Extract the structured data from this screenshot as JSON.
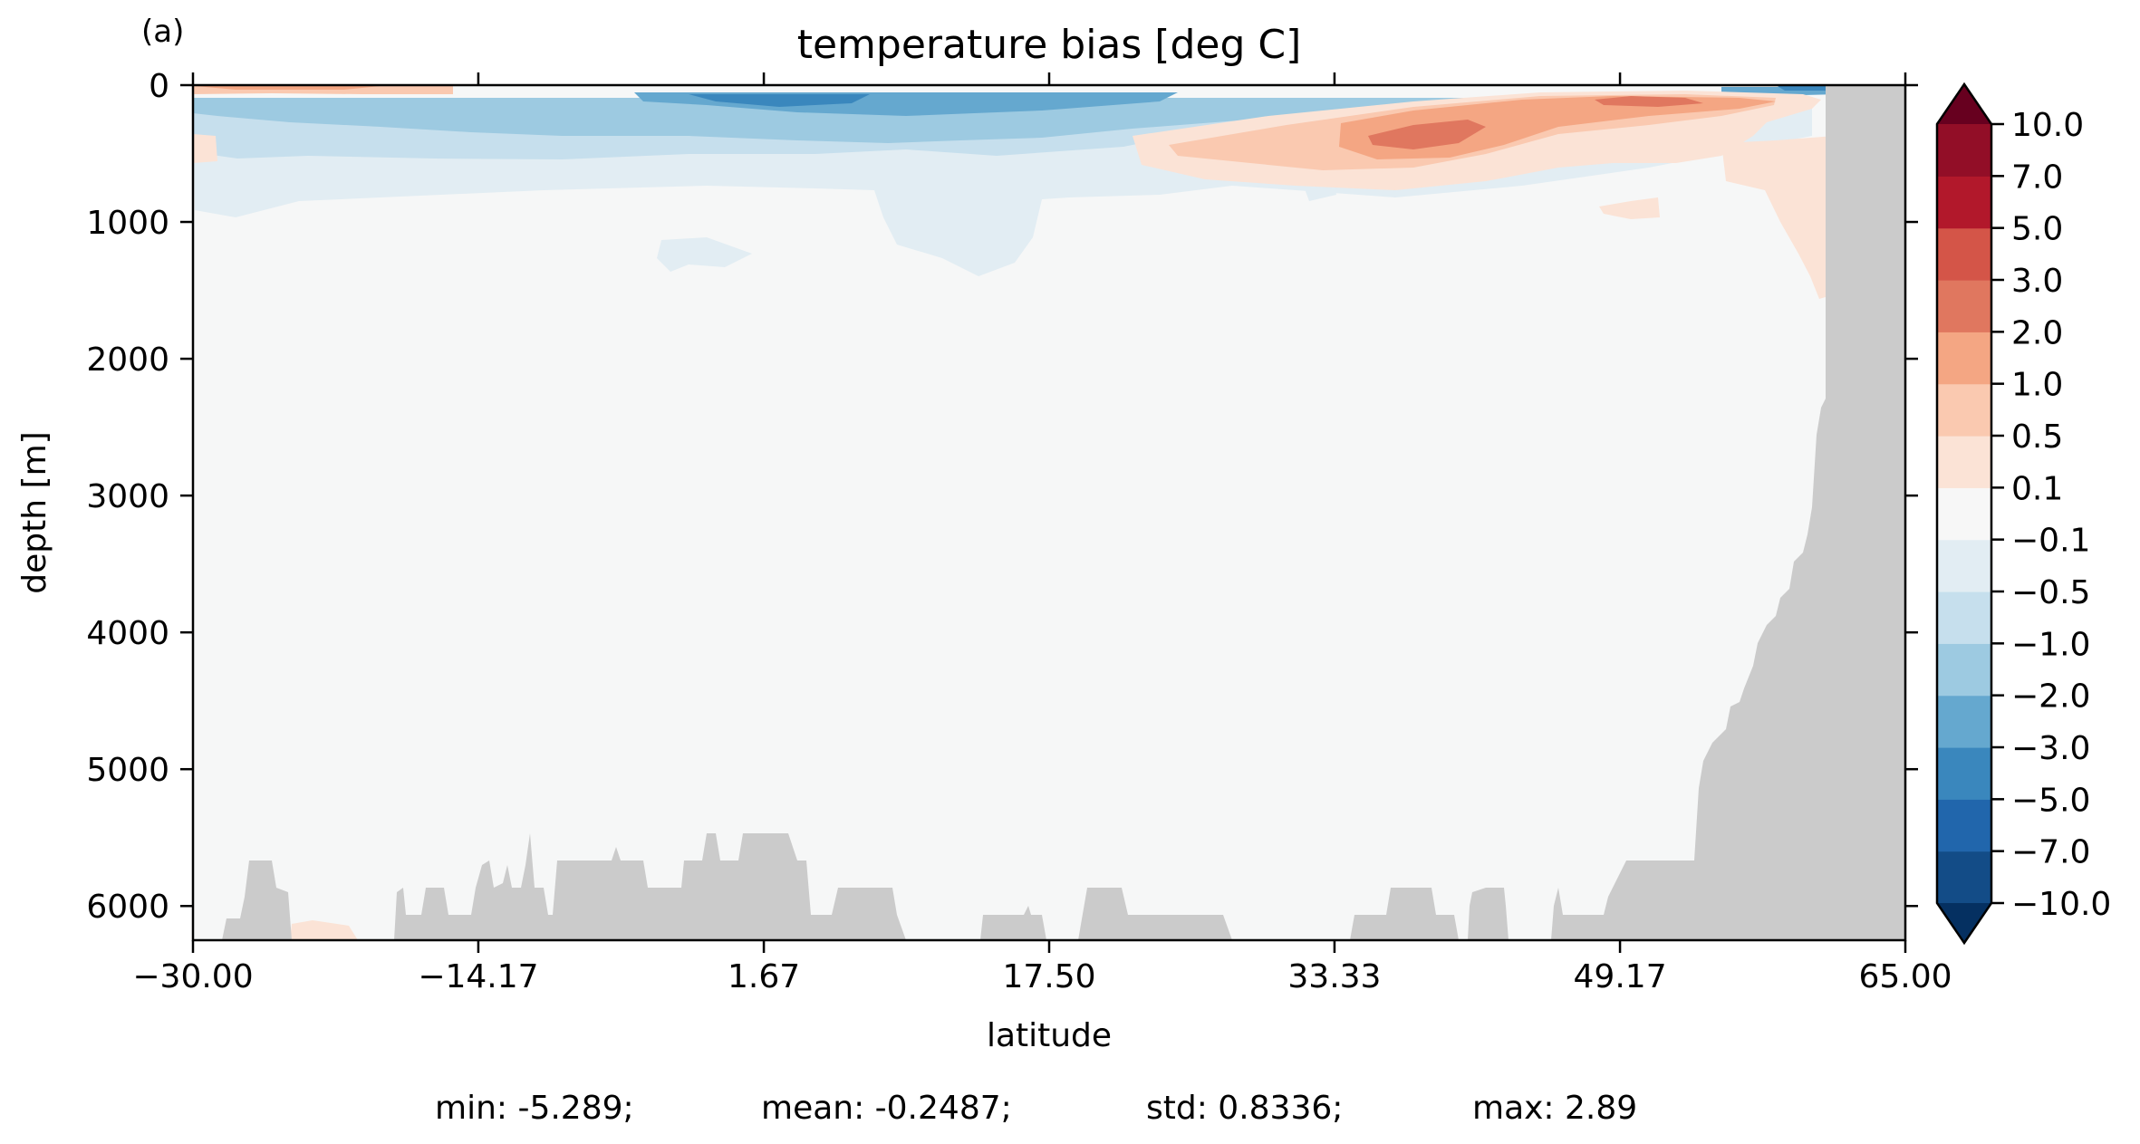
{
  "panel_label": "(a)",
  "chart_data": {
    "type": "heatmap",
    "title": "temperature bias [deg C]",
    "xlabel": "latitude",
    "ylabel": "depth [m]",
    "xlim": [
      -30.0,
      65.0
    ],
    "ylim": [
      6250,
      0
    ],
    "y_inverted": true,
    "x_ticks": [
      "−30.00",
      "−14.17",
      "1.67",
      "17.50",
      "33.33",
      "49.17",
      "65.00"
    ],
    "x_tick_values": [
      -30.0,
      -14.17,
      1.67,
      17.5,
      33.33,
      49.17,
      65.0
    ],
    "y_ticks": [
      "0",
      "1000",
      "2000",
      "3000",
      "4000",
      "5000",
      "6000"
    ],
    "y_tick_values": [
      0,
      1000,
      2000,
      3000,
      4000,
      5000,
      6000
    ],
    "colormap": "RdBu_r",
    "extend": "both",
    "colorbar_levels": [
      -10.0,
      -7.0,
      -5.0,
      -3.0,
      -2.0,
      -1.0,
      -0.5,
      -0.1,
      0.1,
      0.5,
      1.0,
      2.0,
      3.0,
      5.0,
      7.0,
      10.0
    ],
    "colorbar_tick_labels": [
      "−10.0",
      "−7.0",
      "−5.0",
      "−3.0",
      "−2.0",
      "−1.0",
      "−0.5",
      "−0.1",
      "0.1",
      "0.5",
      "1.0",
      "2.0",
      "3.0",
      "5.0",
      "7.0",
      "10.0"
    ],
    "colorbar_colors": [
      "#053061",
      "#134c87",
      "#2166ac",
      "#3a87bd",
      "#65a8cf",
      "#9dcae1",
      "#c6dfed",
      "#e2edf3",
      "#f7f7f7",
      "#fbe3d6",
      "#fac9b0",
      "#f4a683",
      "#e0775f",
      "#d45548",
      "#b2182b",
      "#920e27",
      "#67001f"
    ],
    "land_color": "#cbcbcb",
    "background_color": "#f6f7f7",
    "stats": {
      "min": "min: -5.289;",
      "mean": "mean: -0.2487;",
      "std": "std: 0.8336;",
      "max": "max: 2.89"
    }
  }
}
